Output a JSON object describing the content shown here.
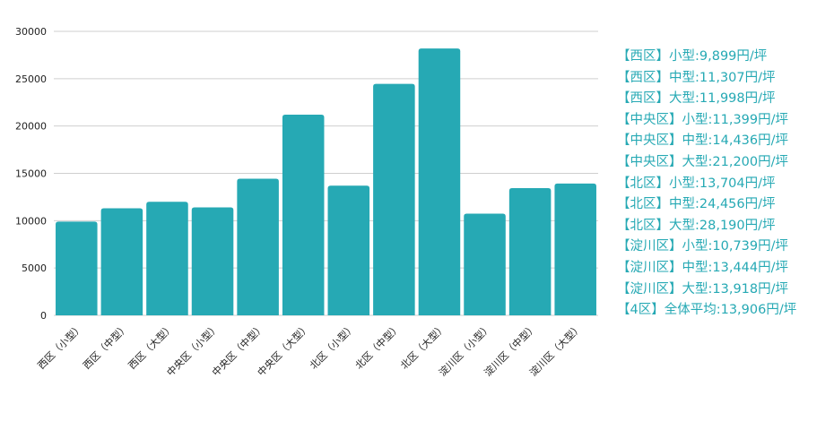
{
  "colors": {
    "bar": "#26a9b4",
    "legend_text": "#26a9b4",
    "grid": "#cfcfcf"
  },
  "chart_data": {
    "type": "bar",
    "categories": [
      "西区（小型）",
      "西区（中型）",
      "西区（大型）",
      "中央区（小型）",
      "中央区（中型）",
      "中央区（大型）",
      "北区（小型）",
      "北区（中型）",
      "北区（大型）",
      "淀川区（小型）",
      "淀川区（中型）",
      "淀川区（大型）"
    ],
    "values": [
      9899,
      11307,
      11998,
      11399,
      14436,
      21200,
      13704,
      24456,
      28190,
      10739,
      13444,
      13918
    ],
    "yticks": [
      "0",
      "5000",
      "10000",
      "15000",
      "20000",
      "25000",
      "30000"
    ],
    "ylim": [
      0,
      30000
    ],
    "grid": true,
    "legend_position": "right",
    "legend": [
      "【西区】小型:9,899円/坪",
      "【西区】中型:11,307円/坪",
      "【西区】大型:11,998円/坪",
      "【中央区】小型:11,399円/坪",
      "【中央区】中型:14,436円/坪",
      "【中央区】大型:21,200円/坪",
      "【北区】小型:13,704円/坪",
      "【北区】中型:24,456円/坪",
      "【北区】大型:28,190円/坪",
      "【淀川区】小型:10,739円/坪",
      "【淀川区】中型:13,444円/坪",
      "【淀川区】大型:13,918円/坪",
      "【4区】全体平均:13,906円/坪"
    ]
  }
}
